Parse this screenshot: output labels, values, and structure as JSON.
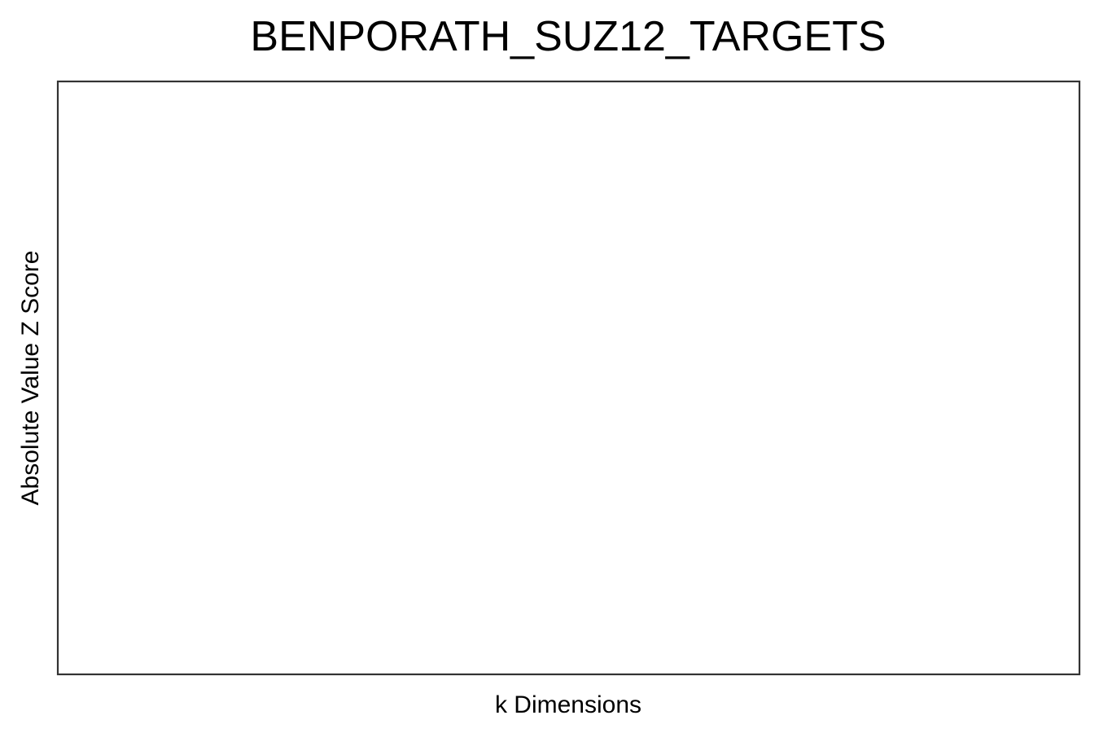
{
  "chart_data": {
    "type": "line",
    "title": "BENPORATH_SUZ12_TARGETS",
    "xlabel": "k Dimensions",
    "ylabel": "Absolute Value Z Score",
    "series": [],
    "x": [],
    "grid": false,
    "legend": "none"
  },
  "colors": {
    "frame": "#333333",
    "background": "#ffffff",
    "text": "#000000"
  }
}
